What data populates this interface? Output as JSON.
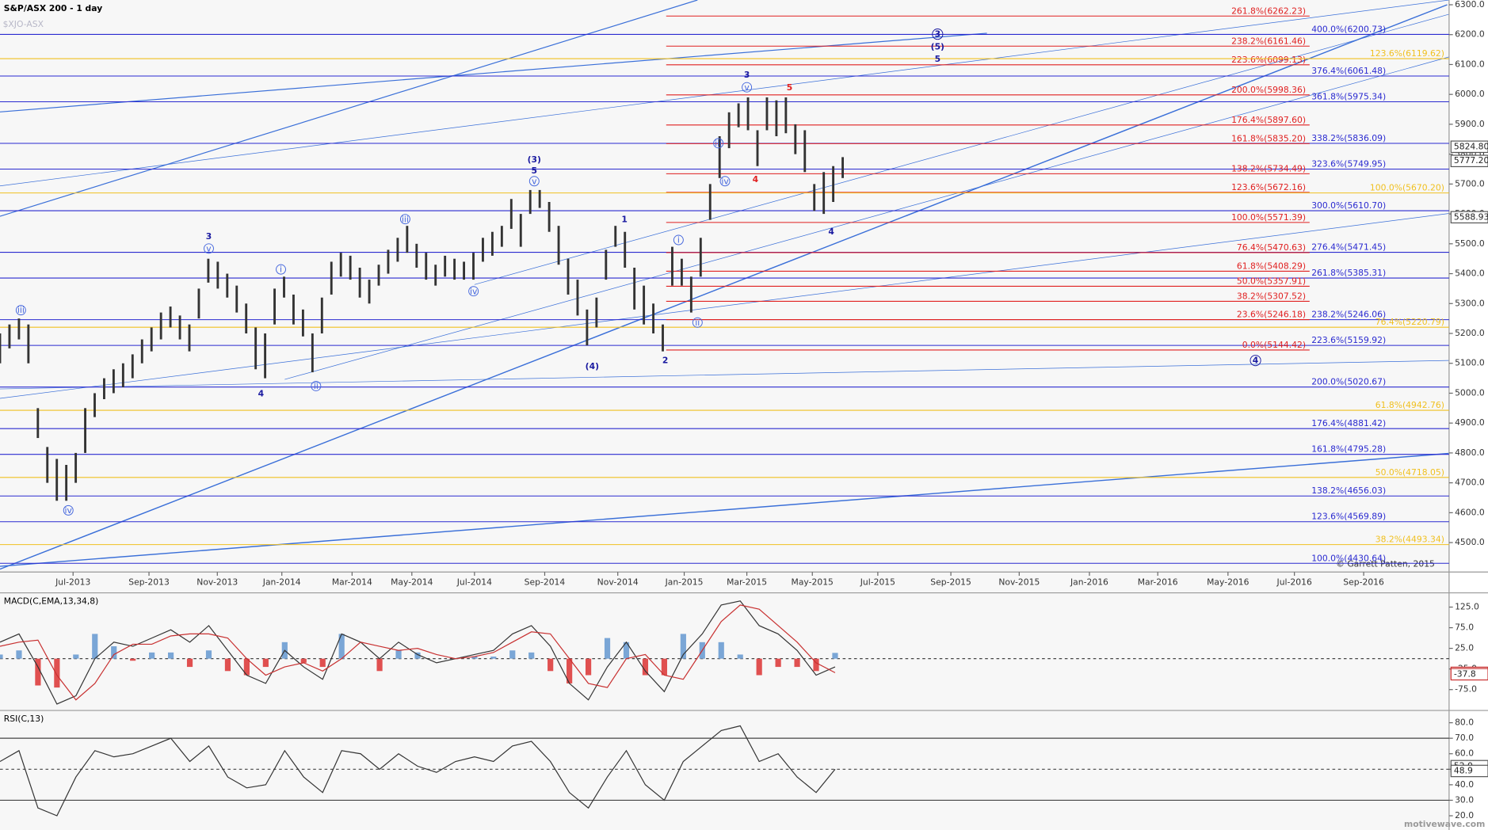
{
  "chart_data": [
    {
      "type": "ohlc",
      "title": "S&P/ASX 200 - 1 day",
      "symbol": "$XJO-ASX",
      "copyright": "© Garrett Patten, 2015",
      "watermark": "motivewave.com",
      "ylim": [
        4401.6,
        6315.9
      ],
      "yticks": [
        {
          "value": 4500,
          "label": "4500.0"
        },
        {
          "value": 4600,
          "label": "4600.0"
        },
        {
          "value": 4700,
          "label": "4700.0"
        },
        {
          "value": 4800,
          "label": "4800.0"
        },
        {
          "value": 4900,
          "label": "4900.0"
        },
        {
          "value": 5000,
          "label": "5000.0"
        },
        {
          "value": 5100,
          "label": "5100.0"
        },
        {
          "value": 5200,
          "label": "5200.0"
        },
        {
          "value": 5300,
          "label": "5300.0"
        },
        {
          "value": 5400,
          "label": "5400.0"
        },
        {
          "value": 5500,
          "label": "5500.0"
        },
        {
          "value": 5600,
          "label": "5600.0"
        },
        {
          "value": 5700,
          "label": "5700.0"
        },
        {
          "value": 5800,
          "label": "5800.0"
        },
        {
          "value": 5900,
          "label": "5900.0"
        },
        {
          "value": 6000,
          "label": "6000.0"
        },
        {
          "value": 6100,
          "label": "6100.0"
        },
        {
          "value": 6200,
          "label": "6200.0"
        },
        {
          "value": 6300,
          "label": "6300.0"
        }
      ],
      "x_labels": [
        "Jul-2013",
        "Sep-2013",
        "Nov-2013",
        "Jan-2014",
        "Mar-2014",
        "May-2014",
        "Jul-2014",
        "Sep-2014",
        "Nov-2014",
        "Jan-2015",
        "Mar-2015",
        "May-2015",
        "Jul-2015",
        "Sep-2015",
        "Nov-2015",
        "Jan-2016",
        "Mar-2016",
        "May-2016",
        "Jul-2016",
        "Sep-2016"
      ],
      "bar_color": "#333333",
      "high": [
        5200,
        5230,
        5250,
        5230,
        4950,
        4820,
        4780,
        4760,
        4800,
        4950,
        5000,
        5050,
        5080,
        5100,
        5130,
        5180,
        5220,
        5270,
        5290,
        5260,
        5230,
        5350,
        5450,
        5440,
        5400,
        5360,
        5300,
        5220,
        5200,
        5350,
        5390,
        5330,
        5280,
        5200,
        5320,
        5440,
        5470,
        5460,
        5420,
        5380,
        5430,
        5480,
        5520,
        5560,
        5500,
        5470,
        5430,
        5460,
        5450,
        5440,
        5470,
        5520,
        5540,
        5560,
        5650,
        5600,
        5680,
        5680,
        5640,
        5560,
        5450,
        5380,
        5280,
        5320,
        5480,
        5560,
        5540,
        5420,
        5360,
        5300,
        5230,
        5490,
        5450,
        5390,
        5520,
        5700,
        5860,
        5940,
        5970,
        5990,
        5880,
        5990,
        5980,
        5990,
        5900,
        5880,
        5700,
        5740,
        5760,
        5790
      ],
      "low": [
        5100,
        5150,
        5180,
        5100,
        4850,
        4700,
        4640,
        4640,
        4700,
        4800,
        4920,
        4980,
        5000,
        5020,
        5050,
        5100,
        5140,
        5180,
        5220,
        5180,
        5140,
        5250,
        5370,
        5350,
        5320,
        5270,
        5200,
        5080,
        5050,
        5230,
        5320,
        5230,
        5190,
        5070,
        5200,
        5330,
        5390,
        5380,
        5320,
        5300,
        5360,
        5400,
        5440,
        5470,
        5420,
        5380,
        5360,
        5390,
        5380,
        5380,
        5380,
        5440,
        5460,
        5490,
        5550,
        5490,
        5600,
        5620,
        5540,
        5430,
        5330,
        5260,
        5160,
        5220,
        5380,
        5490,
        5420,
        5280,
        5230,
        5200,
        5140,
        5360,
        5360,
        5270,
        5390,
        5580,
        5720,
        5820,
        5890,
        5880,
        5760,
        5880,
        5860,
        5870,
        5800,
        5740,
        5610,
        5600,
        5640,
        5720
      ],
      "price_markers": [
        {
          "value": 5824.8,
          "label": "5824.80"
        },
        {
          "value": 5777.2,
          "label": "5777.20"
        },
        {
          "value": 5588.93,
          "label": "5588.93"
        }
      ],
      "fib_groups": [
        {
          "color": "#2a2ad0",
          "levels": [
            {
              "value": 6200.73,
              "label": "400.0%(6200.73)"
            },
            {
              "value": 6061.48,
              "label": "376.4%(6061.48)"
            },
            {
              "value": 5975.34,
              "label": "361.8%(5975.34)"
            },
            {
              "value": 5836.09,
              "label": "338.2%(5836.09)"
            },
            {
              "value": 5749.95,
              "label": "323.6%(5749.95)"
            },
            {
              "value": 5610.7,
              "label": "300.0%(5610.70)"
            },
            {
              "value": 5471.45,
              "label": "276.4%(5471.45)"
            },
            {
              "value": 5385.31,
              "label": "261.8%(5385.31)"
            },
            {
              "value": 5246.06,
              "label": "238.2%(5246.06)"
            },
            {
              "value": 5159.92,
              "label": "223.6%(5159.92)"
            },
            {
              "value": 5020.67,
              "label": "200.0%(5020.67)"
            },
            {
              "value": 4881.42,
              "label": "176.4%(4881.42)"
            },
            {
              "value": 4795.28,
              "label": "161.8%(4795.28)"
            },
            {
              "value": 4656.03,
              "label": "138.2%(4656.03)"
            },
            {
              "value": 4569.89,
              "label": "123.6%(4569.89)"
            },
            {
              "value": 4430.64,
              "label": "100.0%(4430.64)"
            }
          ]
        },
        {
          "color": "#e02020",
          "levels": [
            {
              "value": 6262.23,
              "label": "261.8%(6262.23)"
            },
            {
              "value": 6161.46,
              "label": "238.2%(6161.46)"
            },
            {
              "value": 6099.13,
              "label": "223.6%(6099.13)"
            },
            {
              "value": 5998.36,
              "label": "200.0%(5998.36)"
            },
            {
              "value": 5897.6,
              "label": "176.4%(5897.60)"
            },
            {
              "value": 5835.2,
              "label": "161.8%(5835.20)"
            },
            {
              "value": 5734.49,
              "label": "138.2%(5734.49)"
            },
            {
              "value": 5672.16,
              "label": "123.6%(5672.16)"
            },
            {
              "value": 5571.39,
              "label": "100.0%(5571.39)"
            },
            {
              "value": 5470.63,
              "label": "76.4%(5470.63)"
            },
            {
              "value": 5408.29,
              "label": "61.8%(5408.29)"
            },
            {
              "value": 5357.91,
              "label": "50.0%(5357.91)"
            },
            {
              "value": 5307.52,
              "label": "38.2%(5307.52)"
            },
            {
              "value": 5246.18,
              "label": "23.6%(5246.18)"
            },
            {
              "value": 5144.42,
              "label": "0.0%(5144.42)"
            }
          ]
        },
        {
          "color": "#f0c020",
          "levels": [
            {
              "value": 6119.62,
              "label": "123.6%(6119.62)"
            },
            {
              "value": 5670.2,
              "label": "100.0%(5670.20)"
            },
            {
              "value": 5220.79,
              "label": "76.4%(5220.79)"
            },
            {
              "value": 4942.76,
              "label": "61.8%(4942.76)"
            },
            {
              "value": 4718.05,
              "label": "50.0%(4718.05)"
            },
            {
              "value": 4493.34,
              "label": "38.2%(4493.34)"
            }
          ]
        }
      ],
      "wave_labels": [
        "iii",
        "iv",
        "3",
        "v",
        "4",
        "i",
        "ii",
        "iii",
        "iv",
        "(3)",
        "5",
        "v",
        "(4)",
        "1",
        "2",
        "i",
        "ii",
        "iii",
        "iv",
        "3",
        "v",
        "4",
        "5",
        "4",
        "3",
        "(5)",
        "5",
        "4"
      ]
    },
    {
      "type": "macd",
      "title": "MACD(C,EMA,13,34,8)",
      "ylim": [
        -123.3,
        157.2
      ],
      "yticks": [
        {
          "value": 125,
          "label": "125.0"
        },
        {
          "value": 75,
          "label": "75.0"
        },
        {
          "value": 25,
          "label": "25.0"
        },
        {
          "value": -25,
          "label": "-25.0"
        },
        {
          "value": -75,
          "label": "-75.0"
        }
      ],
      "series": [
        {
          "color": "#333333",
          "values": [
            40,
            60,
            -20,
            -110,
            -90,
            0,
            40,
            30,
            50,
            70,
            40,
            80,
            20,
            -40,
            -60,
            20,
            -20,
            -50,
            60,
            40,
            0,
            40,
            10,
            -10,
            0,
            10,
            20,
            60,
            80,
            30,
            -60,
            -100,
            -20,
            40,
            -30,
            -80,
            10,
            60,
            130,
            140,
            80,
            60,
            20,
            -40,
            -20
          ]
        },
        {
          "color": "#c83030",
          "values": [
            30,
            40,
            45,
            -40,
            -100,
            -60,
            10,
            35,
            35,
            55,
            60,
            60,
            50,
            0,
            -40,
            -20,
            -10,
            -30,
            0,
            40,
            30,
            20,
            25,
            10,
            0,
            5,
            15,
            40,
            65,
            60,
            0,
            -60,
            -70,
            0,
            10,
            -40,
            -50,
            20,
            90,
            130,
            120,
            80,
            40,
            -10,
            -34
          ]
        }
      ],
      "histogram": [
        10,
        20,
        -65,
        -70,
        10,
        60,
        30,
        -5,
        15,
        15,
        -20,
        20,
        -30,
        -40,
        -20,
        40,
        -10,
        -20,
        60,
        0,
        -30,
        20,
        15,
        0,
        0,
        5,
        5,
        20,
        15,
        -30,
        -60,
        -40,
        50,
        40,
        -40,
        -40,
        60,
        40,
        40,
        10,
        -40,
        -20,
        -20,
        -30,
        14
      ],
      "histogram_colors": [
        "#7aa6d6",
        "#e05050"
      ],
      "markers": [
        {
          "value": -34.4,
          "label": "-34.4"
        },
        {
          "value": -37.8,
          "label": "-37.8"
        }
      ]
    },
    {
      "type": "rsi",
      "title": "RSI(C,13)",
      "ylim": [
        15.1,
        87.3
      ],
      "yticks": [
        {
          "value": 80,
          "label": "80.0"
        },
        {
          "value": 70,
          "label": "70.0"
        },
        {
          "value": 60,
          "label": "60.0"
        },
        {
          "value": 50,
          "label": "50.0"
        },
        {
          "value": 40,
          "label": "40.0"
        },
        {
          "value": 30,
          "label": "30.0"
        },
        {
          "value": 20,
          "label": "20.0"
        }
      ],
      "levels": [
        70,
        50,
        30
      ],
      "series": [
        {
          "color": "#333333",
          "values": [
            55,
            62,
            25,
            20,
            45,
            62,
            58,
            60,
            65,
            70,
            55,
            65,
            45,
            38,
            40,
            62,
            45,
            35,
            62,
            60,
            50,
            60,
            52,
            48,
            55,
            58,
            55,
            65,
            68,
            55,
            35,
            25,
            45,
            62,
            40,
            30,
            55,
            65,
            75,
            78,
            55,
            60,
            45,
            35,
            50
          ]
        }
      ],
      "markers": [
        {
          "value": 52.0,
          "label": "52.0"
        },
        {
          "value": 48.9,
          "label": "48.9"
        }
      ]
    }
  ]
}
